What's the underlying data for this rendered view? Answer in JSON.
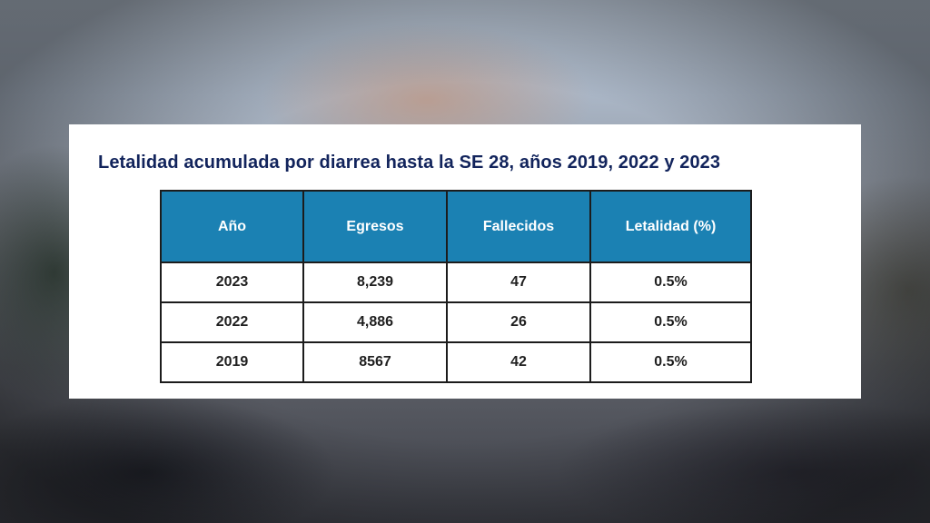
{
  "title": "Letalidad acumulada por diarrea hasta la SE 28, años 2019, 2022 y 2023",
  "table": {
    "headers": [
      "Año",
      "Egresos",
      "Fallecidos",
      "Letalidad (%)"
    ],
    "rows": [
      [
        "2023",
        "8,239",
        "47",
        "0.5%"
      ],
      [
        "2022",
        "4,886",
        "26",
        "0.5%"
      ],
      [
        "2019",
        "8567",
        "42",
        "0.5%"
      ]
    ]
  },
  "colors": {
    "header_fill": "#1b81b3",
    "title_text": "#12245c",
    "card_background": "#ffffff"
  }
}
